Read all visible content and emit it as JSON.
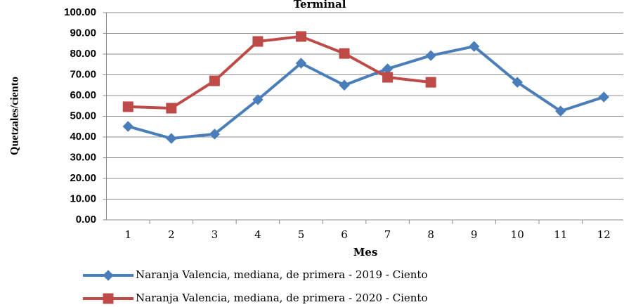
{
  "chart_data": {
    "type": "line",
    "title": "Terminal",
    "x_label": "Mes",
    "y_label": "Quetzales/ciento",
    "categories": [
      "1",
      "2",
      "3",
      "4",
      "5",
      "6",
      "7",
      "8",
      "9",
      "10",
      "11",
      "12"
    ],
    "series": [
      {
        "name": "Naranja Valencia, mediana, de primera - 2019 - Ciento",
        "color": "#4a7ebb",
        "marker": "diamond",
        "values": [
          45.1,
          39.3,
          41.4,
          58.0,
          75.6,
          65.0,
          72.9,
          79.3,
          83.7,
          66.4,
          52.5,
          59.3
        ]
      },
      {
        "name": "Naranja Valencia, mediana, de primera - 2020 - Ciento",
        "color": "#be4b48",
        "marker": "square",
        "values": [
          54.6,
          53.9,
          67.1,
          86.1,
          88.5,
          80.3,
          68.8,
          66.4,
          null,
          null,
          null,
          null
        ]
      }
    ],
    "ylim": [
      0,
      100
    ],
    "yticks": [
      {
        "value": 0,
        "label": "0.00"
      },
      {
        "value": 10,
        "label": "10.00"
      },
      {
        "value": 20,
        "label": "20.00"
      },
      {
        "value": 30,
        "label": "30.00"
      },
      {
        "value": 40,
        "label": "40.00"
      },
      {
        "value": 50,
        "label": "50.00"
      },
      {
        "value": 60,
        "label": "60.00"
      },
      {
        "value": 70,
        "label": "70.00"
      },
      {
        "value": 80,
        "label": "80.00"
      },
      {
        "value": 90,
        "label": "90.00"
      },
      {
        "value": 100,
        "label": "100.00"
      }
    ],
    "grid": true,
    "legend": "bottom"
  }
}
